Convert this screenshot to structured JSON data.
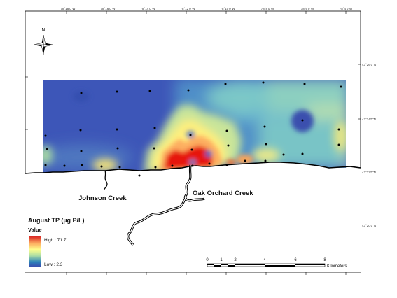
{
  "map": {
    "top_ticks": [
      "78°18'0\"W",
      "78°16'0\"W",
      "78°14'0\"W",
      "78°12'0\"W",
      "78°10'0\"W",
      "78°8'0\"W",
      "78°6'0\"W",
      "78°4'0\"W"
    ],
    "right_ticks": [
      "43°26'0\"N",
      "43°24'0\"N",
      "43°22'0\"N",
      "43°20'0\"N"
    ],
    "north_label": "N",
    "creeks": {
      "johnson": "Johnson Creek",
      "oak_orchard": "Oak Orchard Creek"
    },
    "legend": {
      "title": "August TP (µg P/L)",
      "subtitle": "Value",
      "high": "High : 71.7",
      "low": "Low : 2.3",
      "high_value": 71.7,
      "low_value": 2.3,
      "colors": [
        "#d7191c",
        "#fdae61",
        "#ffff8c",
        "#abdda4",
        "#2b83ba",
        "#3a4fb0"
      ]
    },
    "scale_bar": {
      "ticks": [
        "0",
        "1",
        "2",
        "4",
        "6",
        "8"
      ],
      "unit": "Kilometers"
    },
    "colors": {
      "background_blue": "#3d56b8",
      "hotspot_red": "#e6150f",
      "shoreline": "#000000"
    }
  }
}
